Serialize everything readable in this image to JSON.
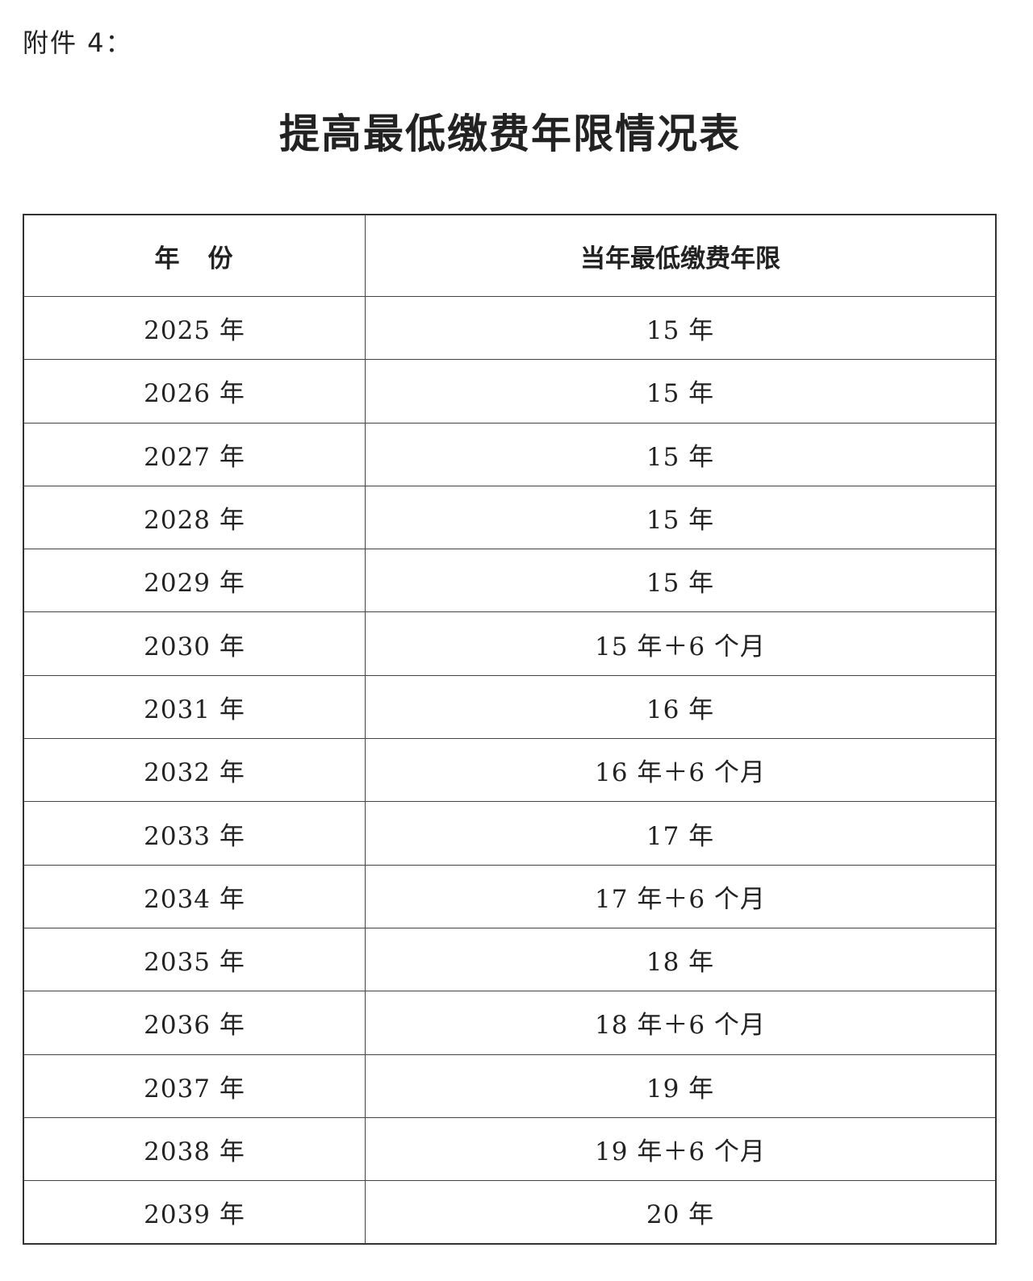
{
  "attachment_label": "附件 4：",
  "title": "提高最低缴费年限情况表",
  "table": {
    "headers": [
      "年　份",
      "当年最低缴费年限"
    ],
    "rows": [
      [
        "2025 年",
        "15 年"
      ],
      [
        "2026 年",
        "15 年"
      ],
      [
        "2027 年",
        "15 年"
      ],
      [
        "2028 年",
        "15 年"
      ],
      [
        "2029 年",
        "15 年"
      ],
      [
        "2030 年",
        "15 年＋6 个月"
      ],
      [
        "2031 年",
        "16 年"
      ],
      [
        "2032 年",
        "16 年＋6 个月"
      ],
      [
        "2033 年",
        "17 年"
      ],
      [
        "2034 年",
        "17 年＋6 个月"
      ],
      [
        "2035 年",
        "18 年"
      ],
      [
        "2036 年",
        "18 年＋6 个月"
      ],
      [
        "2037 年",
        "19 年"
      ],
      [
        "2038 年",
        "19 年＋6 个月"
      ],
      [
        "2039 年",
        "20 年"
      ]
    ]
  }
}
